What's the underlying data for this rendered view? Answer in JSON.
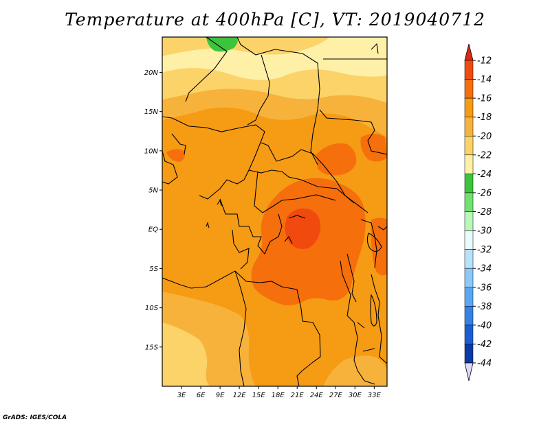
{
  "title": "Temperature at 400hPa [C], VT: 2019040712",
  "credit": "GrADS: IGES/COLA",
  "map": {
    "lon_range": [
      0,
      35
    ],
    "lat_range": [
      -20,
      24.5
    ],
    "lat_ticks": [
      {
        "value": 20,
        "label": "20N"
      },
      {
        "value": 15,
        "label": "15N"
      },
      {
        "value": 10,
        "label": "10N"
      },
      {
        "value": 5,
        "label": "5N"
      },
      {
        "value": 0,
        "label": "EQ"
      },
      {
        "value": -5,
        "label": "5S"
      },
      {
        "value": -10,
        "label": "10S"
      },
      {
        "value": -15,
        "label": "15S"
      }
    ],
    "lon_ticks": [
      {
        "value": 3,
        "label": "3E"
      },
      {
        "value": 6,
        "label": "6E"
      },
      {
        "value": 9,
        "label": "9E"
      },
      {
        "value": 12,
        "label": "12E"
      },
      {
        "value": 15,
        "label": "15E"
      },
      {
        "value": 18,
        "label": "18E"
      },
      {
        "value": 21,
        "label": "21E"
      },
      {
        "value": 24,
        "label": "24E"
      },
      {
        "value": 27,
        "label": "27E"
      },
      {
        "value": 30,
        "label": "30E"
      },
      {
        "value": 33,
        "label": "33E"
      }
    ]
  },
  "colorbar": {
    "levels": [
      "-12",
      "-14",
      "-16",
      "-18",
      "-20",
      "-22",
      "-24",
      "-26",
      "-28",
      "-30",
      "-32",
      "-34",
      "-36",
      "-38",
      "-40",
      "-42",
      "-44"
    ],
    "colors": [
      "#f04a0e",
      "#f56f0c",
      "#f59b14",
      "#f7b23b",
      "#fbd369",
      "#fff0a8",
      "#3cc43c",
      "#6ee46e",
      "#b8f8b8",
      "#e8fcfc",
      "#b8e2fa",
      "#8cc8f8",
      "#5aa8f2",
      "#3482e6",
      "#1c5ed2",
      "#0c3aa8",
      "#0a1472"
    ],
    "top_cap": "#dc2a14",
    "bottom_cap": "#dcdcfa"
  },
  "colors": {
    "border": "#000000",
    "sahara_light": "#fff0a8",
    "pale": "#fbd369",
    "light_orange": "#f7b23b",
    "orange": "#f59b14",
    "deep_orange": "#f56f0c",
    "red_orange": "#f04a0e",
    "green": "#3cc43c"
  }
}
